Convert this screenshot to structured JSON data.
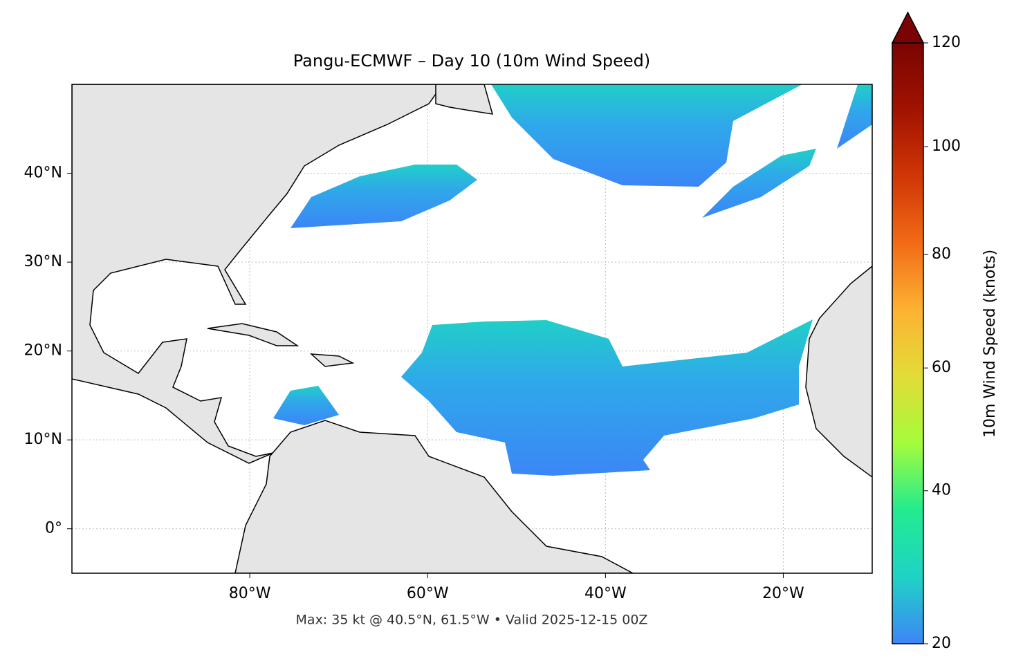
{
  "title": "Pangu-ECMWF – Day 10 (10m Wind Speed)",
  "footer": "Max: 35 kt @ 40.5°N, 61.5°W • Valid 2025-12-15 00Z",
  "map": {
    "lon_range": [
      -100,
      -10
    ],
    "lat_range": [
      -5,
      50
    ],
    "grid": true,
    "lon_ticks": [
      {
        "value": -80,
        "label": "80°W"
      },
      {
        "value": -60,
        "label": "60°W"
      },
      {
        "value": -40,
        "label": "40°W"
      },
      {
        "value": -20,
        "label": "20°W"
      }
    ],
    "lat_ticks": [
      {
        "value": 0,
        "label": "0°"
      },
      {
        "value": 10,
        "label": "10°N"
      },
      {
        "value": 20,
        "label": "20°N"
      },
      {
        "value": 30,
        "label": "30°N"
      },
      {
        "value": 40,
        "label": "40°N"
      }
    ]
  },
  "colorbar": {
    "label": "10m Wind Speed (knots)",
    "range": [
      20,
      120
    ],
    "ticks": [
      20,
      40,
      60,
      80,
      100,
      120
    ],
    "gamma": 0.85,
    "extend": "max",
    "colors": [
      "#3d85f7",
      "#1fd3c5",
      "#22eb90",
      "#a4fc3c",
      "#e2dc38",
      "#fdb232",
      "#f26b17",
      "#d03606",
      "#a11201",
      "#7a0403"
    ]
  }
}
